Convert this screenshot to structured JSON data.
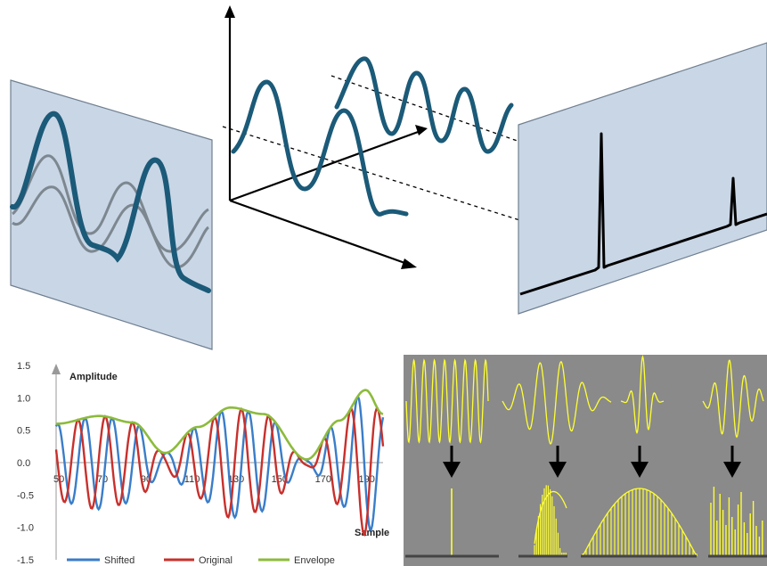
{
  "colors": {
    "panel_fill": "#c9d6e6",
    "panel_edge": "#6f7f90",
    "wave_dark": "#1b5a78",
    "wave_gray": "#7d8790",
    "spectrum_line": "#000000",
    "shifted": "#3a7dc9",
    "original": "#c8302c",
    "envelope": "#8cbb3c",
    "grid_bg": "#8a8a8a",
    "yellow": "#ffff33"
  },
  "chart_data": {
    "type": "line",
    "ylabel": "Amplitude",
    "xlabel": "Sample",
    "yticks": [
      "1.5",
      "1.0",
      "0.5",
      "0.0",
      "-0.5",
      "-1.0",
      "-1.5"
    ],
    "xticks": [
      "50",
      "70",
      "90",
      "110",
      "130",
      "150",
      "170",
      "190"
    ],
    "xlim": [
      50,
      200
    ],
    "ylim": [
      -1.5,
      1.5
    ],
    "series": [
      {
        "name": "Shifted"
      },
      {
        "name": "Original"
      },
      {
        "name": "Envelope"
      }
    ]
  }
}
